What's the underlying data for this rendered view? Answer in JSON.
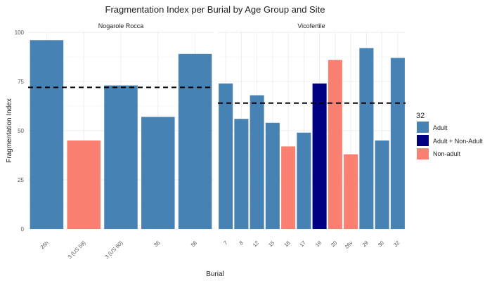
{
  "chart_data": {
    "type": "bar",
    "title": "Fragmentation Index per Burial by Age Group and Site",
    "xlabel": "Burial",
    "ylabel": "Fragmentation Index",
    "ylim": [
      0,
      100
    ],
    "yticks": [
      0,
      25,
      50,
      75,
      100
    ],
    "grid": true,
    "legend": {
      "title": "32",
      "position": "right",
      "entries": [
        {
          "label": "Adult",
          "color": "#4682b4"
        },
        {
          "label": "Adult + Non-Adult",
          "color": "#000080"
        },
        {
          "label": "Non-adult",
          "color": "#fa8072"
        }
      ]
    },
    "panels": [
      {
        "name": "Nogarole Rocca",
        "reference_line": 72,
        "categories": [
          "26h",
          "3 (US 59)",
          "3 (US 60)",
          "36",
          "56"
        ],
        "values": [
          96,
          45,
          73,
          57,
          89
        ],
        "groups": [
          "Adult",
          "Non-adult",
          "Adult",
          "Adult",
          "Adult"
        ]
      },
      {
        "name": "Vicofertile",
        "reference_line": 64,
        "categories": [
          "7",
          "8",
          "12",
          "15",
          "16",
          "17",
          "19",
          "20",
          "26v",
          "29",
          "30",
          "32"
        ],
        "values": [
          74,
          56,
          68,
          54,
          42,
          49,
          74,
          86,
          38,
          92,
          45,
          87
        ],
        "groups": [
          "Adult",
          "Adult",
          "Adult",
          "Adult",
          "Non-adult",
          "Adult",
          "Adult + Non-Adult",
          "Non-adult",
          "Non-adult",
          "Adult",
          "Adult",
          "Adult"
        ]
      }
    ]
  }
}
